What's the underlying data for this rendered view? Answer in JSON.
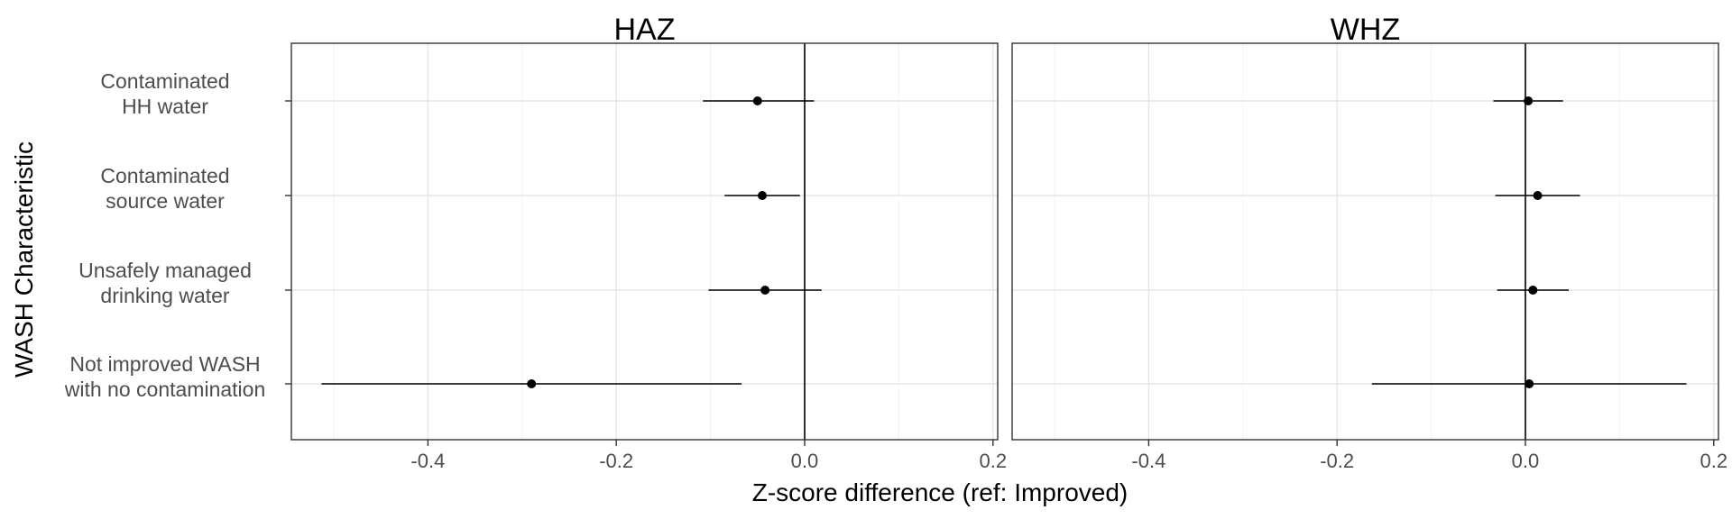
{
  "chart_data": {
    "type": "forest",
    "ylabel": "WASH Characteristic",
    "xlabel": "Z-score difference (ref: Improved)",
    "xlim": [
      -0.545,
      0.205
    ],
    "xticks": [
      -0.4,
      -0.2,
      0.0,
      0.2
    ],
    "xtick_labels": [
      "-0.4",
      "-0.2",
      "0.0",
      "0.2"
    ],
    "categories": [
      [
        "Contaminated",
        "HH water"
      ],
      [
        "Contaminated",
        "source water"
      ],
      [
        "Unsafely managed",
        "drinking water"
      ],
      [
        "Not improved WASH",
        "with no contamination"
      ]
    ],
    "grid": true,
    "reference_line": 0,
    "panels": [
      {
        "title": "HAZ",
        "points": [
          {
            "estimate": -0.05,
            "lower": -0.108,
            "upper": 0.01
          },
          {
            "estimate": -0.045,
            "lower": -0.085,
            "upper": -0.005
          },
          {
            "estimate": -0.042,
            "lower": -0.102,
            "upper": 0.018
          },
          {
            "estimate": -0.29,
            "lower": -0.513,
            "upper": -0.067
          }
        ]
      },
      {
        "title": "WHZ",
        "points": [
          {
            "estimate": 0.003,
            "lower": -0.034,
            "upper": 0.04
          },
          {
            "estimate": 0.013,
            "lower": -0.032,
            "upper": 0.058
          },
          {
            "estimate": 0.008,
            "lower": -0.03,
            "upper": 0.046
          },
          {
            "estimate": 0.004,
            "lower": -0.163,
            "upper": 0.171
          }
        ]
      }
    ]
  }
}
